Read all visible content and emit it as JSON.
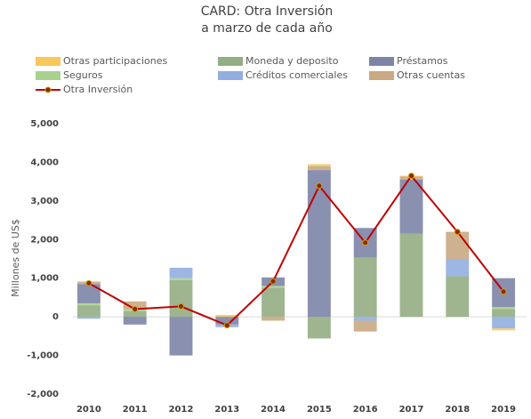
{
  "chart_data": {
    "type": "bar",
    "title": "CARD: Otra Inversión",
    "subtitle": "a marzo de cada año",
    "y_label": "Millones de US$",
    "categories": [
      "2010",
      "2011",
      "2012",
      "2013",
      "2014",
      "2015",
      "2016",
      "2017",
      "2018",
      "2019"
    ],
    "stacked": true,
    "series": [
      {
        "name": "Otras participaciones",
        "color": "#f7c75a",
        "values": [
          20,
          0,
          0,
          50,
          0,
          50,
          0,
          20,
          0,
          -50
        ]
      },
      {
        "name": "Moneda y deposito",
        "color": "#93ad84",
        "values": [
          300,
          150,
          950,
          0,
          750,
          -560,
          1530,
          2150,
          1050,
          200
        ]
      },
      {
        "name": "Préstamos",
        "color": "#7d84a6",
        "values": [
          500,
          -200,
          -1000,
          -200,
          220,
          3800,
          770,
          1400,
          0,
          750
        ]
      },
      {
        "name": "Seguros",
        "color": "#a9d18e",
        "values": [
          50,
          50,
          50,
          0,
          50,
          0,
          0,
          0,
          0,
          50
        ]
      },
      {
        "name": "Créditos comerciales",
        "color": "#92aee0",
        "values": [
          -50,
          0,
          270,
          -70,
          0,
          0,
          -100,
          0,
          450,
          -300
        ]
      },
      {
        "name": "Otras cuentas",
        "color": "#c9a882",
        "values": [
          50,
          200,
          0,
          0,
          -100,
          100,
          -280,
          80,
          700,
          0
        ]
      },
      {
        "name": "Otra Inversión",
        "type": "line",
        "color": "#c00000",
        "values": [
          870,
          200,
          270,
          -220,
          920,
          3390,
          1920,
          3650,
          2200,
          650
        ]
      }
    ],
    "ylim": [
      -2000,
      5000
    ],
    "yticks": [
      {
        "value": -2000,
        "label": "-2,000"
      },
      {
        "value": -1000,
        "label": "-1,000"
      },
      0,
      {
        "value": 1000,
        "label": "1,000"
      },
      {
        "value": 2000,
        "label": "2,000"
      },
      {
        "value": 3000,
        "label": "3,000"
      },
      {
        "value": 4000,
        "label": "4,000"
      },
      {
        "value": 5000,
        "label": "5,000"
      }
    ],
    "grid": false
  }
}
